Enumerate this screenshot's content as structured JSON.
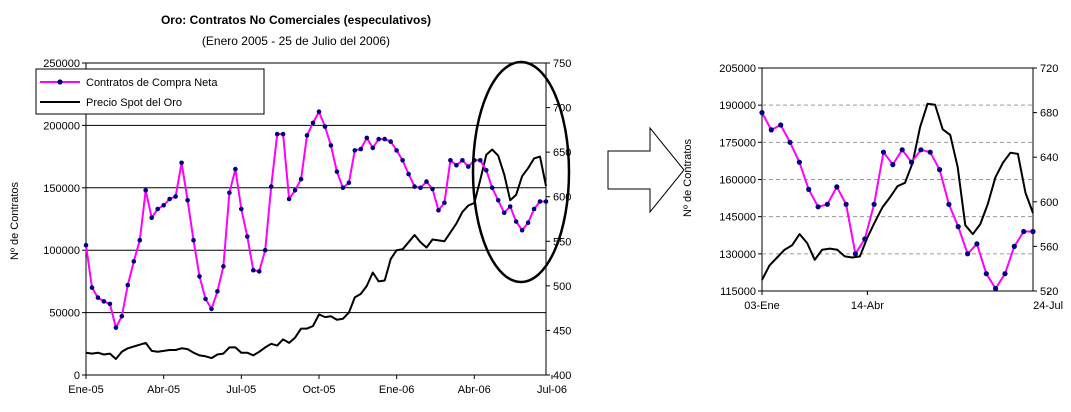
{
  "chart_data": [
    {
      "type": "line",
      "title": "Oro: Contratos No Comerciales (especulativos)",
      "subtitle": "(Enero 2005 - 25 de Julio del 2006)",
      "ylabel": "Nº de Contratos",
      "xlabel": "",
      "ylim": [
        0,
        250000
      ],
      "yticks": [
        "0",
        "50000",
        "100000",
        "150000",
        "200000",
        "250000"
      ],
      "y2lim": [
        400,
        750
      ],
      "y2ticks": [
        "400",
        "450",
        "500",
        "550",
        "600",
        "650",
        "700",
        "750"
      ],
      "xticks": [
        "Ene-05",
        "Abr-05",
        "Jul-05",
        "Oct-05",
        "Ene-06",
        "Abr-06",
        "Jul-06"
      ],
      "xtick_weeks": [
        0,
        13,
        26,
        39,
        52,
        65,
        78
      ],
      "grid": "horizontal",
      "legend_position": "top-left",
      "annotation": "ellipse highlighting last 30 weeks",
      "series": [
        {
          "name": "Contratos de Compra Neta",
          "axis": "left",
          "color": "#ff00ff",
          "marker_color": "#000080",
          "values": [
            104000,
            70000,
            62000,
            59000,
            57000,
            38000,
            47000,
            72000,
            91000,
            108000,
            148000,
            126000,
            133000,
            136000,
            141000,
            143000,
            170000,
            140000,
            108000,
            79000,
            61000,
            53000,
            67000,
            87000,
            146000,
            165000,
            133000,
            111000,
            84000,
            83000,
            100000,
            151000,
            193000,
            193000,
            141000,
            148000,
            157000,
            192000,
            202000,
            211000,
            199000,
            184000,
            163000,
            150000,
            154000,
            180000,
            181000,
            190000,
            182000,
            189000,
            189000,
            187000,
            180000,
            172000,
            161000,
            151000,
            150000,
            155000,
            149000,
            132000,
            138000,
            172000,
            168000,
            172000,
            167000,
            172000,
            172000,
            164000,
            150000,
            140000,
            130000,
            135000,
            123000,
            116000,
            122000,
            133000,
            139000,
            139000
          ]
        },
        {
          "name": "Precio Spot del Oro",
          "axis": "right",
          "color": "#000000",
          "values": [
            425,
            424,
            425,
            423,
            424,
            418,
            426,
            430,
            432,
            434,
            436,
            427,
            426,
            427,
            428,
            428,
            430,
            429,
            425,
            422,
            421,
            419,
            423,
            424,
            431,
            431,
            425,
            425,
            422,
            426,
            431,
            435,
            433,
            440,
            436,
            442,
            452,
            452,
            455,
            468,
            465,
            466,
            462,
            463,
            470,
            487,
            491,
            500,
            515,
            505,
            506,
            530,
            540,
            541,
            549,
            557,
            549,
            543,
            552,
            551,
            550,
            560,
            570,
            583,
            590,
            593,
            619,
            647,
            653,
            646,
            625,
            596,
            602,
            623,
            632,
            643,
            645,
            612
          ]
        }
      ]
    },
    {
      "type": "line",
      "title": "",
      "ylabel": "Nº de Contratos",
      "ylim": [
        115000,
        205000
      ],
      "yticks": [
        "115000",
        "130000",
        "145000",
        "160000",
        "175000",
        "190000",
        "205000"
      ],
      "y2lim": [
        520,
        720
      ],
      "y2ticks": [
        "520",
        "560",
        "600",
        "640",
        "680",
        "720"
      ],
      "xticks": [
        "03-Ene",
        "14-Abr",
        "24-Jul"
      ],
      "xtick_points": [
        0,
        14,
        38
      ],
      "grid": "horizontal-dashed",
      "series": [
        {
          "name": "Contratos de Compra Neta",
          "axis": "left",
          "color": "#ff00ff",
          "marker_color": "#000080",
          "values": [
            187000,
            180000,
            182000,
            175000,
            167000,
            156000,
            149000,
            150000,
            157000,
            150000,
            130000,
            136000,
            150000,
            171000,
            166000,
            172000,
            167000,
            172000,
            171000,
            164000,
            150000,
            141000,
            130000,
            134000,
            122000,
            116000,
            122000,
            133000,
            139000,
            139000
          ]
        },
        {
          "name": "Precio Spot del Oro",
          "axis": "right",
          "color": "#000000",
          "values": [
            530,
            543,
            550,
            557,
            561,
            571,
            563,
            548,
            557,
            558,
            557,
            551,
            550,
            551,
            568,
            582,
            595,
            604,
            614,
            617,
            635,
            667,
            688,
            687,
            665,
            660,
            631,
            579,
            571,
            580,
            598,
            622,
            635,
            644,
            643,
            608,
            590
          ]
        }
      ]
    }
  ],
  "arrow": {
    "shape": "right-arrow-outline"
  }
}
